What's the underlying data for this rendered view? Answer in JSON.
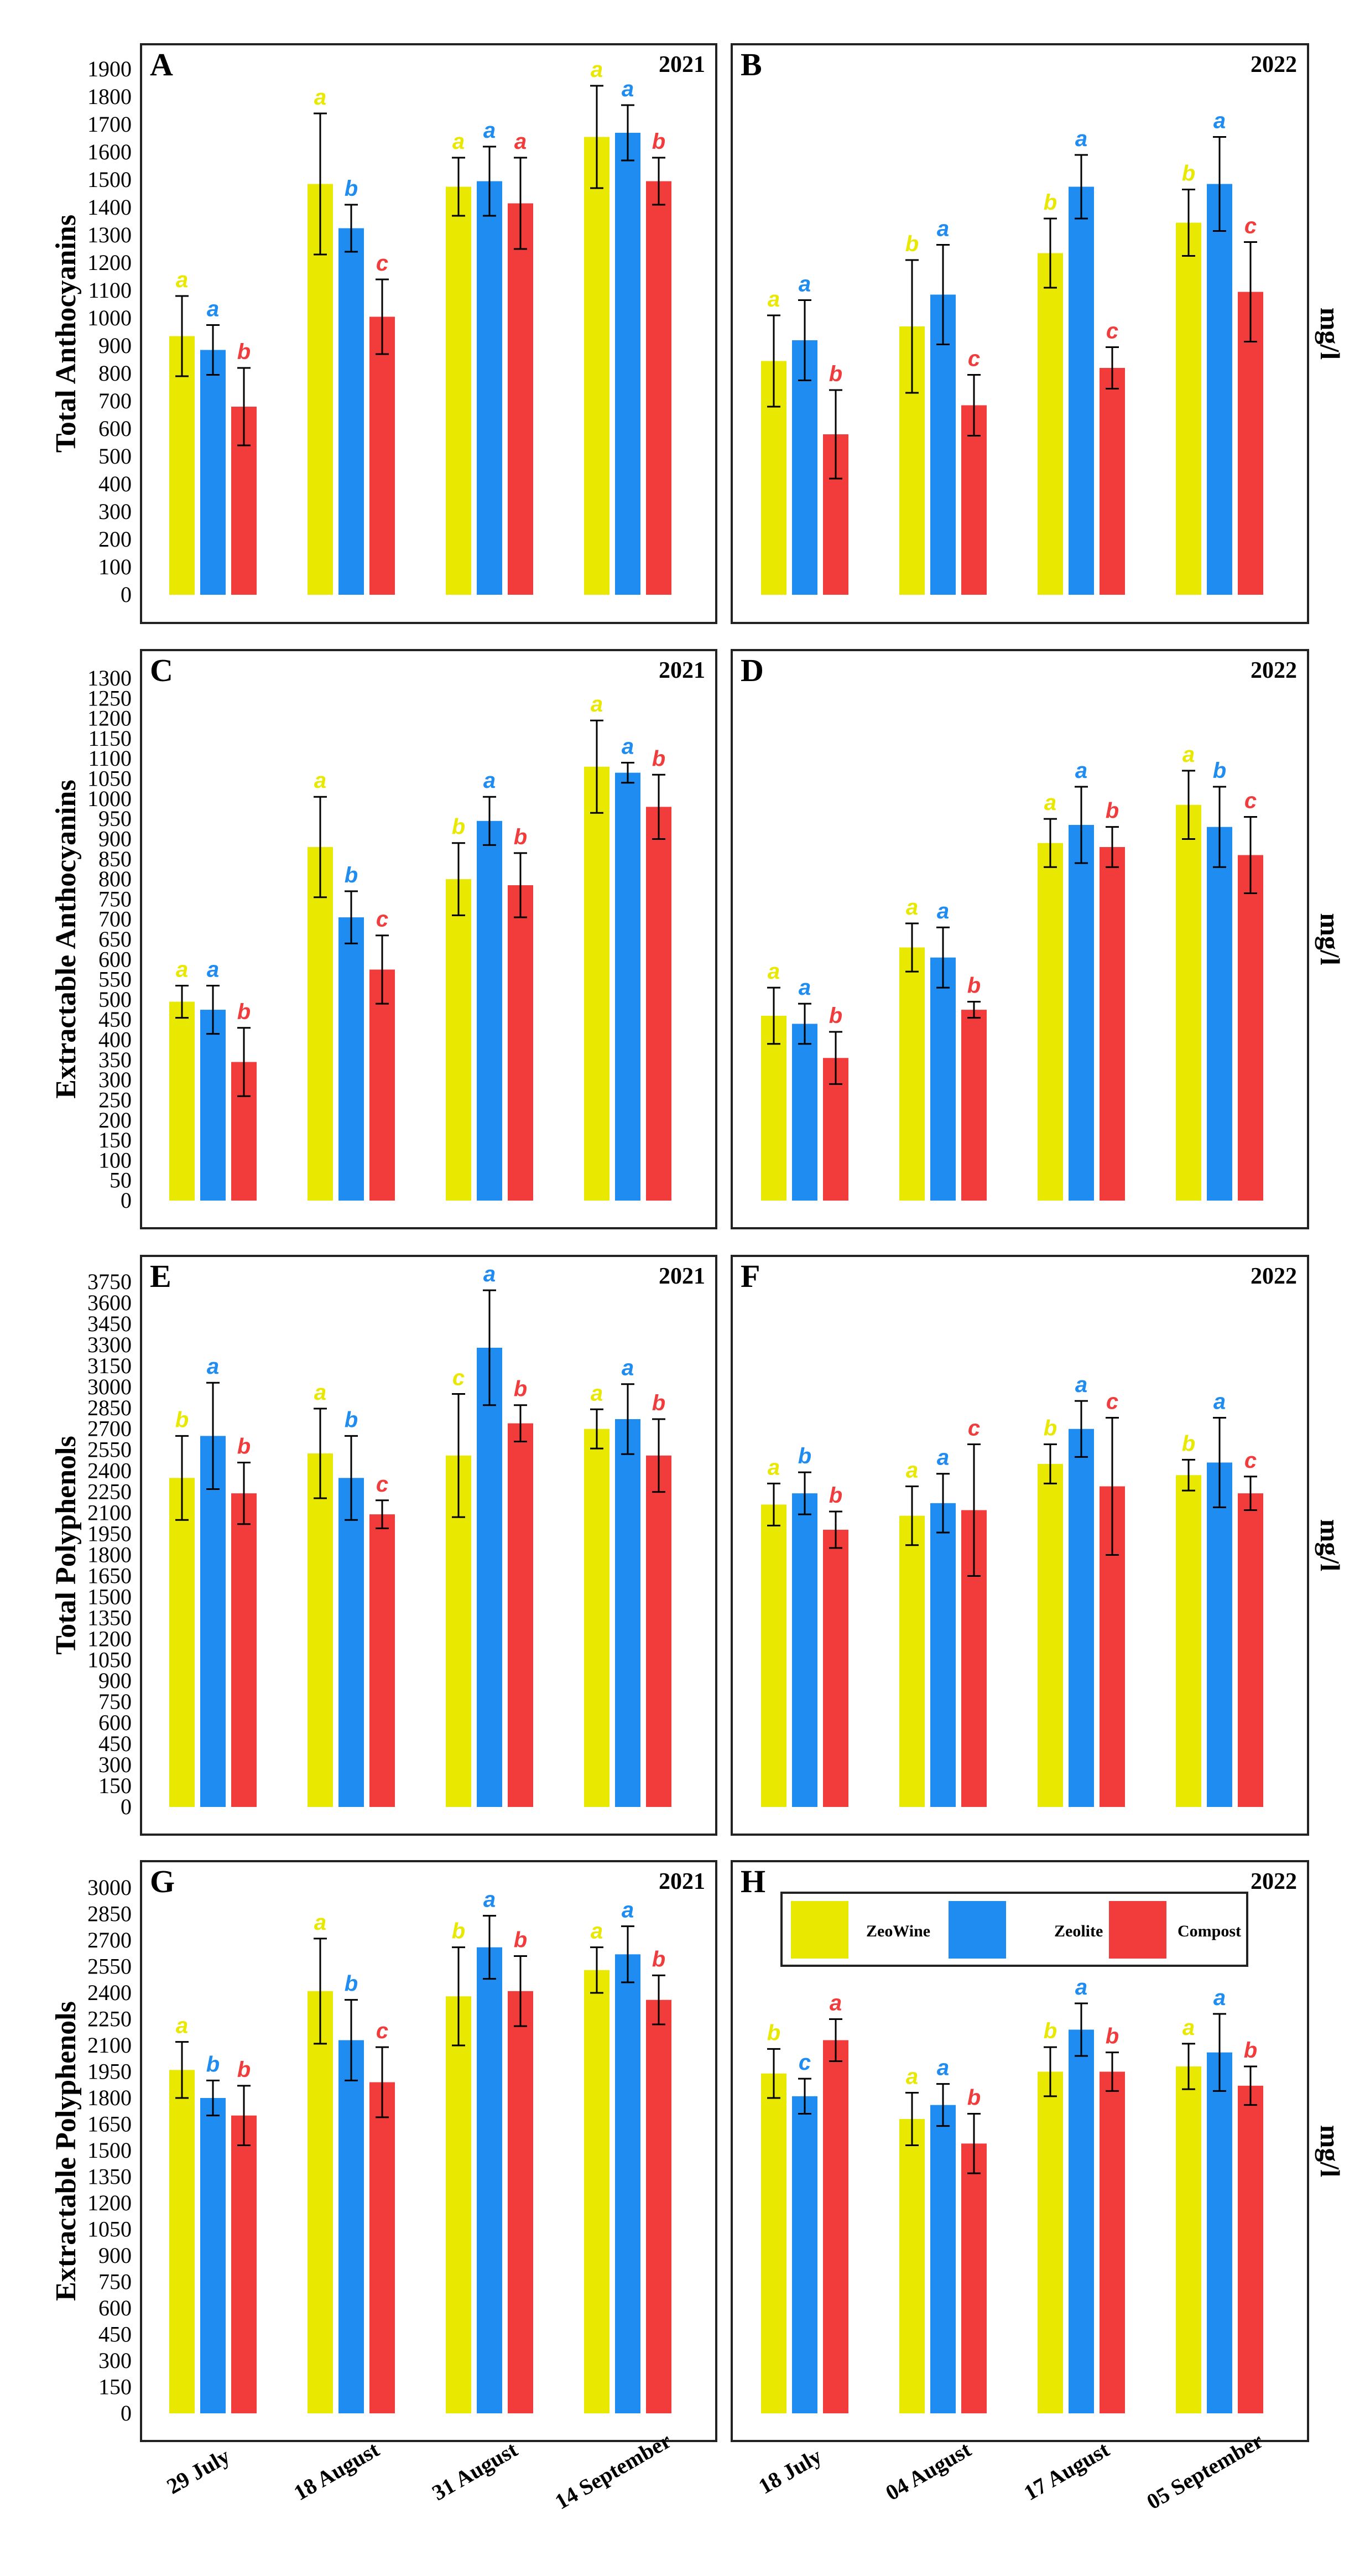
{
  "colors": {
    "ZeoWine": "#e8e800",
    "Zeolite": "#1e8cf0",
    "Compost": "#f23c3c",
    "frame": "#222222"
  },
  "unit_label": "mg/l",
  "legend": {
    "items": [
      "ZeoWine",
      "Zeolite",
      "Compost"
    ]
  },
  "dates": {
    "2021": [
      "29 July",
      "18 August",
      "31 August",
      "14 September"
    ],
    "2022": [
      "18 July",
      "04 August",
      "17 August",
      "05 September"
    ]
  },
  "chart_data": [
    {
      "type": "bar",
      "panel": "A",
      "year": "2021",
      "ylabel": "Total Anthocyanins",
      "ylim": [
        0,
        1900
      ],
      "yticks": [
        0,
        100,
        200,
        300,
        400,
        500,
        600,
        700,
        800,
        900,
        1000,
        1100,
        1200,
        1300,
        1400,
        1500,
        1600,
        1700,
        1800,
        1900
      ],
      "categories": [
        "29 July",
        "18 August",
        "31 August",
        "14 September"
      ],
      "series": [
        {
          "name": "ZeoWine",
          "values": [
            935,
            1485,
            1475,
            1655
          ],
          "errors": [
            145,
            255,
            105,
            185
          ],
          "letters": [
            "a",
            "a",
            "a",
            "a"
          ]
        },
        {
          "name": "Zeolite",
          "values": [
            885,
            1325,
            1495,
            1670
          ],
          "errors": [
            90,
            85,
            125,
            100
          ],
          "letters": [
            "a",
            "b",
            "a",
            "a"
          ]
        },
        {
          "name": "Compost",
          "values": [
            680,
            1005,
            1415,
            1495
          ],
          "errors": [
            140,
            135,
            165,
            85
          ],
          "letters": [
            "b",
            "c",
            "a",
            "b"
          ]
        }
      ]
    },
    {
      "type": "bar",
      "panel": "B",
      "year": "2022",
      "ylabel": "",
      "ylim": [
        0,
        1900
      ],
      "yticks": [],
      "categories": [
        "18 July",
        "04 August",
        "17 August",
        "05 September"
      ],
      "series": [
        {
          "name": "ZeoWine",
          "values": [
            845,
            970,
            1235,
            1345
          ],
          "errors": [
            165,
            240,
            125,
            120
          ],
          "letters": [
            "a",
            "b",
            "b",
            "b"
          ]
        },
        {
          "name": "Zeolite",
          "values": [
            920,
            1085,
            1475,
            1485
          ],
          "errors": [
            145,
            180,
            115,
            170
          ],
          "letters": [
            "a",
            "a",
            "a",
            "a"
          ]
        },
        {
          "name": "Compost",
          "values": [
            580,
            685,
            820,
            1095
          ],
          "errors": [
            160,
            110,
            75,
            180
          ],
          "letters": [
            "b",
            "c",
            "c",
            "c"
          ]
        }
      ]
    },
    {
      "type": "bar",
      "panel": "C",
      "year": "2021",
      "ylabel": "Extractable Anthocyanins",
      "ylim": [
        0,
        1300
      ],
      "yticks": [
        0,
        50,
        100,
        150,
        200,
        250,
        300,
        350,
        400,
        450,
        500,
        550,
        600,
        650,
        700,
        750,
        800,
        850,
        900,
        950,
        1000,
        1050,
        1100,
        1150,
        1200,
        1250,
        1300
      ],
      "categories": [
        "29 July",
        "18 August",
        "31 August",
        "14 September"
      ],
      "series": [
        {
          "name": "ZeoWine",
          "values": [
            495,
            880,
            800,
            1080
          ],
          "errors": [
            40,
            125,
            90,
            115
          ],
          "letters": [
            "a",
            "a",
            "b",
            "a"
          ]
        },
        {
          "name": "Zeolite",
          "values": [
            475,
            705,
            945,
            1065
          ],
          "errors": [
            60,
            65,
            60,
            25
          ],
          "letters": [
            "a",
            "b",
            "a",
            "a"
          ]
        },
        {
          "name": "Compost",
          "values": [
            345,
            575,
            785,
            980
          ],
          "errors": [
            85,
            85,
            80,
            80
          ],
          "letters": [
            "b",
            "c",
            "b",
            "b"
          ]
        }
      ]
    },
    {
      "type": "bar",
      "panel": "D",
      "year": "2022",
      "ylabel": "",
      "ylim": [
        0,
        1300
      ],
      "yticks": [],
      "categories": [
        "18 July",
        "04 August",
        "17 August",
        "05 September"
      ],
      "series": [
        {
          "name": "ZeoWine",
          "values": [
            460,
            630,
            890,
            985
          ],
          "errors": [
            70,
            60,
            60,
            85
          ],
          "letters": [
            "a",
            "a",
            "a",
            "a"
          ]
        },
        {
          "name": "Zeolite",
          "values": [
            440,
            605,
            935,
            930
          ],
          "errors": [
            50,
            75,
            95,
            100
          ],
          "letters": [
            "a",
            "a",
            "a",
            "b"
          ]
        },
        {
          "name": "Compost",
          "values": [
            355,
            475,
            880,
            860
          ],
          "errors": [
            65,
            20,
            50,
            95
          ],
          "letters": [
            "b",
            "b",
            "b",
            "c"
          ]
        }
      ]
    },
    {
      "type": "bar",
      "panel": "E",
      "year": "2021",
      "ylabel": "Total Polyphenols",
      "ylim": [
        0,
        3750
      ],
      "yticks": [
        0,
        150,
        300,
        450,
        600,
        750,
        900,
        1050,
        1200,
        1350,
        1500,
        1650,
        1800,
        1950,
        2100,
        2250,
        2400,
        2550,
        2700,
        2850,
        3000,
        3150,
        3300,
        3450,
        3600,
        3750
      ],
      "categories": [
        "29 July",
        "18 August",
        "31 August",
        "14 September"
      ],
      "series": [
        {
          "name": "ZeoWine",
          "values": [
            2350,
            2525,
            2510,
            2700
          ],
          "errors": [
            300,
            320,
            440,
            140
          ],
          "letters": [
            "b",
            "a",
            "c",
            "a"
          ]
        },
        {
          "name": "Zeolite",
          "values": [
            2650,
            2350,
            3280,
            2770
          ],
          "errors": [
            380,
            300,
            410,
            250
          ],
          "letters": [
            "a",
            "b",
            "a",
            "a"
          ]
        },
        {
          "name": "Compost",
          "values": [
            2240,
            2090,
            2740,
            2510
          ],
          "errors": [
            220,
            100,
            130,
            260
          ],
          "letters": [
            "b",
            "c",
            "b",
            "b"
          ]
        }
      ]
    },
    {
      "type": "bar",
      "panel": "F",
      "year": "2022",
      "ylabel": "",
      "ylim": [
        0,
        3750
      ],
      "yticks": [],
      "categories": [
        "18 July",
        "04 August",
        "17 August",
        "05 September"
      ],
      "series": [
        {
          "name": "ZeoWine",
          "values": [
            2160,
            2080,
            2450,
            2370
          ],
          "errors": [
            150,
            210,
            140,
            110
          ],
          "letters": [
            "a",
            "a",
            "b",
            "b"
          ]
        },
        {
          "name": "Zeolite",
          "values": [
            2240,
            2170,
            2700,
            2460
          ],
          "errors": [
            150,
            210,
            200,
            320
          ],
          "letters": [
            "b",
            "a",
            "a",
            "a"
          ]
        },
        {
          "name": "Compost",
          "values": [
            1980,
            2120,
            2290,
            2240
          ],
          "errors": [
            130,
            470,
            490,
            120
          ],
          "letters": [
            "b",
            "c",
            "c",
            "c"
          ]
        }
      ]
    },
    {
      "type": "bar",
      "panel": "G",
      "year": "2021",
      "ylabel": "Extractable Polyphenols",
      "ylim": [
        0,
        3000
      ],
      "yticks": [
        0,
        150,
        300,
        450,
        600,
        750,
        900,
        1050,
        1200,
        1350,
        1500,
        1650,
        1800,
        1950,
        2100,
        2250,
        2400,
        2550,
        2700,
        2850,
        3000
      ],
      "categories": [
        "29 July",
        "18 August",
        "31 August",
        "14 September"
      ],
      "series": [
        {
          "name": "ZeoWine",
          "values": [
            1960,
            2410,
            2380,
            2530
          ],
          "errors": [
            160,
            300,
            280,
            130
          ],
          "letters": [
            "a",
            "a",
            "b",
            "a"
          ]
        },
        {
          "name": "Zeolite",
          "values": [
            1800,
            2130,
            2660,
            2620
          ],
          "errors": [
            100,
            230,
            180,
            160
          ],
          "letters": [
            "b",
            "b",
            "a",
            "a"
          ]
        },
        {
          "name": "Compost",
          "values": [
            1700,
            1890,
            2410,
            2360
          ],
          "errors": [
            170,
            200,
            200,
            140
          ],
          "letters": [
            "b",
            "c",
            "b",
            "b"
          ]
        }
      ]
    },
    {
      "type": "bar",
      "panel": "H",
      "year": "2022",
      "ylabel": "",
      "ylim": [
        0,
        3000
      ],
      "yticks": [],
      "categories": [
        "18 July",
        "04 August",
        "17 August",
        "05 September"
      ],
      "series": [
        {
          "name": "ZeoWine",
          "values": [
            1940,
            1680,
            1950,
            1980
          ],
          "errors": [
            140,
            150,
            140,
            130
          ],
          "letters": [
            "b",
            "a",
            "b",
            "a"
          ]
        },
        {
          "name": "Zeolite",
          "values": [
            1810,
            1760,
            2190,
            2060
          ],
          "errors": [
            100,
            120,
            150,
            220
          ],
          "letters": [
            "c",
            "a",
            "a",
            "a"
          ]
        },
        {
          "name": "Compost",
          "values": [
            2130,
            1540,
            1950,
            1870
          ],
          "errors": [
            120,
            170,
            110,
            110
          ],
          "letters": [
            "a",
            "b",
            "b",
            "b"
          ]
        }
      ]
    }
  ]
}
